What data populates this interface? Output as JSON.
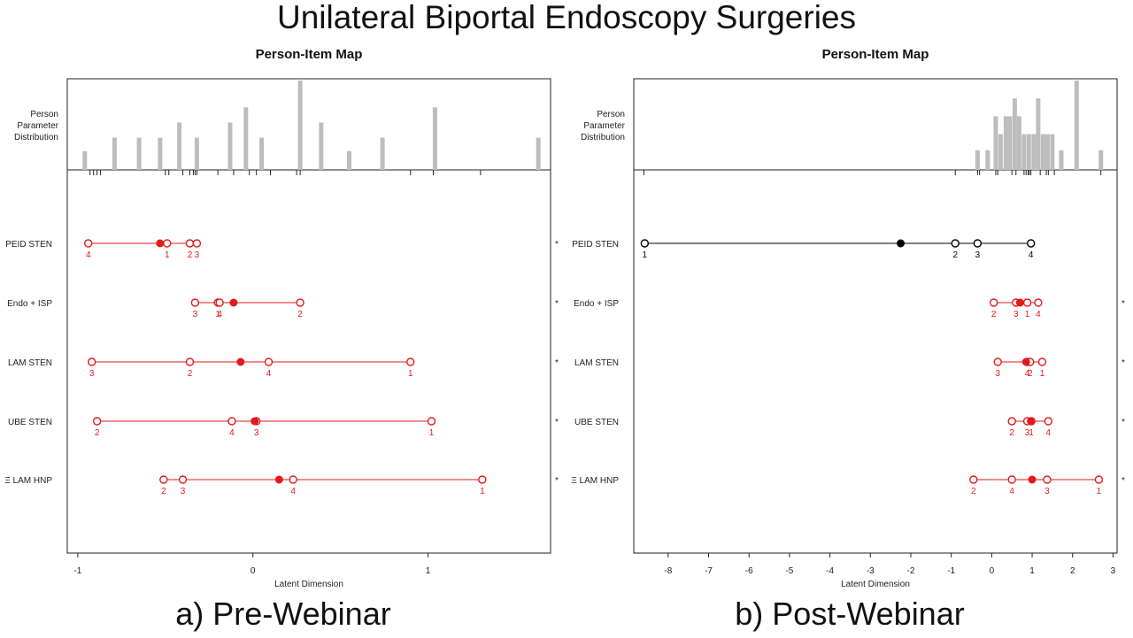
{
  "main_title": "Unilateral Biportal Endoscopy Surgeries",
  "chart_data": [
    {
      "type": "scatter",
      "caption": "a) Pre-Webinar",
      "title": "Person-Item Map",
      "dist_label_lines": [
        "Person",
        "Parameter",
        "Distribution"
      ],
      "xlabel": "Latent Dimension",
      "xlim": [
        -1.06,
        1.7
      ],
      "xticks": [
        -1,
        0,
        1
      ],
      "xtick_labels": [
        "-1",
        "0",
        "1"
      ],
      "person_distribution": [
        {
          "theta": -0.96,
          "height": 0.21
        },
        {
          "theta": -0.79,
          "height": 0.36
        },
        {
          "theta": -0.65,
          "height": 0.36
        },
        {
          "theta": -0.53,
          "height": 0.36
        },
        {
          "theta": -0.42,
          "height": 0.53
        },
        {
          "theta": -0.32,
          "height": 0.36
        },
        {
          "theta": -0.13,
          "height": 0.53
        },
        {
          "theta": -0.04,
          "height": 0.7
        },
        {
          "theta": 0.05,
          "height": 0.36
        },
        {
          "theta": 0.27,
          "height": 1.0
        },
        {
          "theta": 0.39,
          "height": 0.53
        },
        {
          "theta": 0.55,
          "height": 0.21
        },
        {
          "theta": 0.74,
          "height": 0.36
        },
        {
          "theta": 1.04,
          "height": 0.7
        },
        {
          "theta": 1.63,
          "height": 0.36
        }
      ],
      "rug": [
        -0.93,
        -0.91,
        -0.89,
        -0.87,
        -0.5,
        -0.48,
        -0.4,
        -0.36,
        -0.34,
        -0.33,
        -0.32,
        -0.2,
        -0.11,
        -0.02,
        0.02,
        0.1,
        0.25,
        0.27,
        0.9,
        1.03,
        1.3
      ],
      "item_color": "#e31a1c",
      "items": [
        {
          "label": "PEID STEN",
          "location": -0.53,
          "misfit_marker": "*",
          "thresholds": [
            {
              "category": "4",
              "value": -0.94
            },
            {
              "category": "1",
              "value": -0.49
            },
            {
              "category": "2",
              "value": -0.36
            },
            {
              "category": "3",
              "value": -0.32
            }
          ]
        },
        {
          "label": "Endo + ISP",
          "location": -0.11,
          "misfit_marker": "*",
          "thresholds": [
            {
              "category": "3",
              "value": -0.33
            },
            {
              "category": "1",
              "value": -0.2
            },
            {
              "category": "4",
              "value": -0.19
            },
            {
              "category": "2",
              "value": 0.27
            }
          ]
        },
        {
          "label": "LAM STEN",
          "location": -0.07,
          "misfit_marker": "*",
          "thresholds": [
            {
              "category": "3",
              "value": -0.92
            },
            {
              "category": "2",
              "value": -0.36
            },
            {
              "category": "4",
              "value": 0.09
            },
            {
              "category": "1",
              "value": 0.9
            }
          ]
        },
        {
          "label": "UBE STEN",
          "location": 0.01,
          "misfit_marker": "*",
          "thresholds": [
            {
              "category": "2",
              "value": -0.89
            },
            {
              "category": "4",
              "value": -0.12
            },
            {
              "category": "3",
              "value": 0.02
            },
            {
              "category": "1",
              "value": 1.02
            }
          ]
        },
        {
          "label": "Ξ LAM HNP",
          "location": 0.15,
          "misfit_marker": "*",
          "thresholds": [
            {
              "category": "2",
              "value": -0.51
            },
            {
              "category": "3",
              "value": -0.4
            },
            {
              "category": "4",
              "value": 0.23
            },
            {
              "category": "1",
              "value": 1.31
            }
          ]
        }
      ]
    },
    {
      "type": "scatter",
      "caption": "b) Post-Webinar",
      "title": "Person-Item Map",
      "dist_label_lines": [
        "Person",
        "Parameter",
        "Distribution"
      ],
      "xlabel": "Latent Dimension",
      "xlim": [
        -8.85,
        3.1
      ],
      "xticks": [
        -8,
        -7,
        -6,
        -5,
        -4,
        -3,
        -2,
        -1,
        0,
        1,
        2,
        3
      ],
      "xtick_labels": [
        "-8",
        "-7",
        "-6",
        "-5",
        "-4",
        "-3",
        "-2",
        "-1",
        "0",
        "1",
        "2",
        "3"
      ],
      "person_distribution": [
        {
          "theta": -0.35,
          "height": 0.22
        },
        {
          "theta": -0.1,
          "height": 0.22
        },
        {
          "theta": 0.1,
          "height": 0.6
        },
        {
          "theta": 0.22,
          "height": 0.4
        },
        {
          "theta": 0.35,
          "height": 0.6
        },
        {
          "theta": 0.45,
          "height": 0.6
        },
        {
          "theta": 0.57,
          "height": 0.8
        },
        {
          "theta": 0.68,
          "height": 0.6
        },
        {
          "theta": 0.8,
          "height": 0.4
        },
        {
          "theta": 0.92,
          "height": 0.4
        },
        {
          "theta": 1.04,
          "height": 0.4
        },
        {
          "theta": 1.15,
          "height": 0.8
        },
        {
          "theta": 1.27,
          "height": 0.4
        },
        {
          "theta": 1.38,
          "height": 0.4
        },
        {
          "theta": 1.5,
          "height": 0.4
        },
        {
          "theta": 1.72,
          "height": 0.22
        },
        {
          "theta": 2.1,
          "height": 1.0
        },
        {
          "theta": 2.7,
          "height": 0.22
        }
      ],
      "rug": [
        -8.6,
        -0.9,
        -0.35,
        -0.3,
        0.1,
        0.15,
        0.5,
        0.6,
        0.8,
        0.85,
        0.9,
        0.93,
        0.97,
        1.2,
        1.35,
        1.4,
        1.55,
        2.7
      ],
      "item_colors": [
        "#000000",
        "#e31a1c",
        "#e31a1c",
        "#e31a1c",
        "#e31a1c"
      ],
      "items": [
        {
          "label": "PEID STEN",
          "location": -2.25,
          "misfit_marker": "",
          "thresholds": [
            {
              "category": "1",
              "value": -8.58
            },
            {
              "category": "2",
              "value": -0.9
            },
            {
              "category": "3",
              "value": -0.35
            },
            {
              "category": "4",
              "value": 0.97
            }
          ]
        },
        {
          "label": "Endo + ISP",
          "location": 0.7,
          "misfit_marker": "*",
          "thresholds": [
            {
              "category": "2",
              "value": 0.05
            },
            {
              "category": "3",
              "value": 0.6
            },
            {
              "category": "1",
              "value": 0.88
            },
            {
              "category": "4",
              "value": 1.15
            }
          ]
        },
        {
          "label": "LAM STEN",
          "location": 0.85,
          "misfit_marker": "*",
          "thresholds": [
            {
              "category": "3",
              "value": 0.15
            },
            {
              "category": "4",
              "value": 0.88
            },
            {
              "category": "2",
              "value": 0.95
            },
            {
              "category": "1",
              "value": 1.25
            }
          ]
        },
        {
          "label": "UBE STEN",
          "location": 0.97,
          "misfit_marker": "*",
          "thresholds": [
            {
              "category": "2",
              "value": 0.5
            },
            {
              "category": "3",
              "value": 0.88
            },
            {
              "category": "1",
              "value": 0.98
            },
            {
              "category": "4",
              "value": 1.4
            }
          ]
        },
        {
          "label": "Ξ LAM HNP",
          "location": 1.0,
          "misfit_marker": "*",
          "thresholds": [
            {
              "category": "2",
              "value": -0.45
            },
            {
              "category": "4",
              "value": 0.5
            },
            {
              "category": "3",
              "value": 1.37
            },
            {
              "category": "1",
              "value": 2.65
            }
          ]
        }
      ]
    }
  ]
}
